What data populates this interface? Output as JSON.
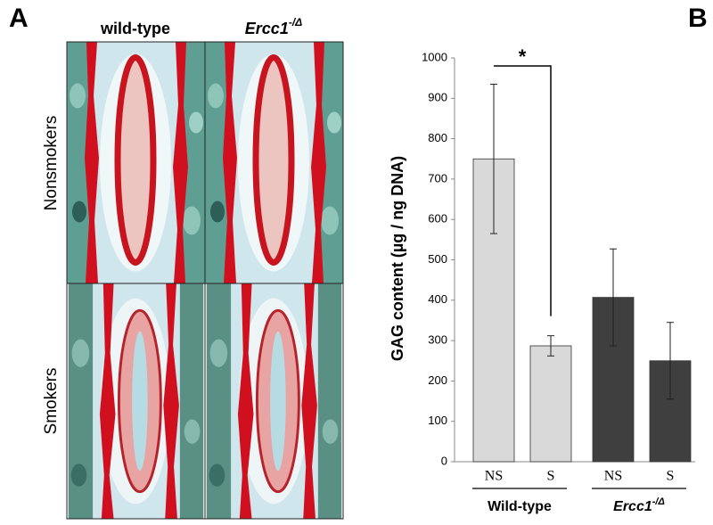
{
  "panel_a": {
    "label": "A",
    "columns": [
      {
        "text": "wild-type"
      },
      {
        "text": "Ercc1",
        "sup": "-/Δ"
      }
    ],
    "rows": [
      "Nonsmokers",
      "Smokers"
    ]
  },
  "chart_data": {
    "type": "bar",
    "panel_label": "B",
    "y_label": "GAG content (µg / ng DNA)",
    "categories": [
      "NS",
      "S",
      "NS",
      "S"
    ],
    "values": [
      750,
      287,
      407,
      250
    ],
    "errors": [
      185,
      25,
      120,
      95
    ],
    "colors": [
      "#d9d9d9",
      "#d9d9d9",
      "#3f3f3f",
      "#3f3f3f"
    ],
    "groups": [
      {
        "text": "Wild-type"
      },
      {
        "text": "Ercc1",
        "sup": "-/Δ"
      }
    ],
    "annotation": "*",
    "ylim": [
      0,
      1000
    ],
    "yticks": [
      0,
      100,
      200,
      300,
      400,
      500,
      600,
      700,
      800,
      900,
      1000
    ]
  }
}
